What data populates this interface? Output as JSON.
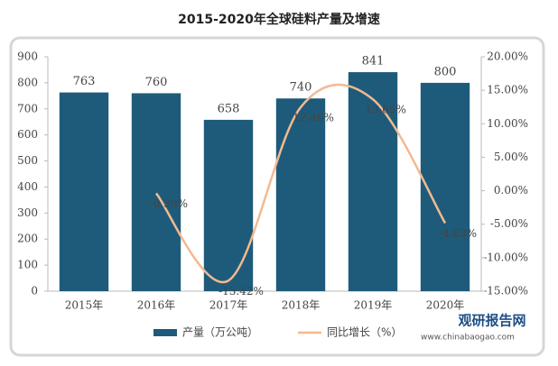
{
  "chart_data": {
    "type": "bar",
    "title": "2015-2020年全球硅料产量及增速",
    "categories": [
      "2015年",
      "2016年",
      "2017年",
      "2018年",
      "2019年",
      "2020年"
    ],
    "series": [
      {
        "name": "产量（万公吨）",
        "type": "bar",
        "color": "#1e5b7a",
        "values": [
          763,
          760,
          658,
          740,
          841,
          800
        ]
      },
      {
        "name": "同比增长（%）",
        "type": "line",
        "axis": "y2",
        "color": "#f4b990",
        "values": [
          null,
          -0.39,
          -13.42,
          12.46,
          13.65,
          -4.83
        ],
        "value_labels": [
          null,
          "-0.39%",
          "-13.42%",
          "12.46%",
          "13.65%",
          "-4.83%"
        ]
      }
    ],
    "ylim": [
      0,
      900
    ],
    "yticks": [
      0,
      100,
      200,
      300,
      400,
      500,
      600,
      700,
      800,
      900
    ],
    "y2lim": [
      -15,
      20
    ],
    "y2ticks": [
      {
        "value": -15,
        "label": "-15.00%"
      },
      {
        "value": -10,
        "label": "-10.00%"
      },
      {
        "value": -5,
        "label": "-5.00%"
      },
      {
        "value": 0,
        "label": "0.00%"
      },
      {
        "value": 5,
        "label": "5.00%"
      },
      {
        "value": 10,
        "label": "10.00%"
      },
      {
        "value": 15,
        "label": "15.00%"
      },
      {
        "value": 20,
        "label": "20.00%"
      }
    ],
    "grid": false
  },
  "watermark": {
    "name": "观研报告网",
    "url": "www.chinabaogao.com"
  }
}
